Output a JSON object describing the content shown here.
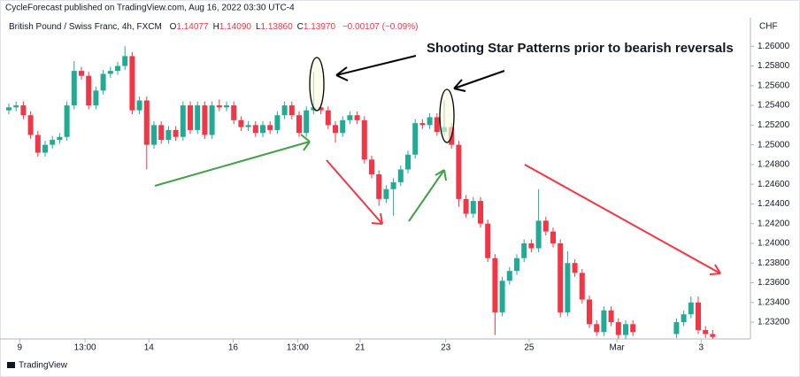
{
  "header": {
    "published": "CycleForecast published on TradingView.com, Aug 16, 2022 03:30 UTC-4",
    "footer": "TradingView"
  },
  "chart_data": {
    "type": "candlestick",
    "symbol": "British Pound / Swiss Franc, 4h, FXCM",
    "ohlc": [
      {
        "label": "O",
        "value": "1.14077"
      },
      {
        "label": "H",
        "value": "1.14090"
      },
      {
        "label": "L",
        "value": "1.13860"
      },
      {
        "label": "C",
        "value": "1.13970"
      }
    ],
    "change": "−0.00107 (−0.09%)",
    "currency": "CHF",
    "annotation": "Shooting Star Patterns prior to bearish reversals",
    "up_color": "#22ab94",
    "down_color": "#f23645",
    "ylim": [
      1.2303,
      1.262
    ],
    "yticks": [
      {
        "value": 1.26,
        "label": "1.26000"
      },
      {
        "value": 1.258,
        "label": "1.25800"
      },
      {
        "value": 1.256,
        "label": "1.25600"
      },
      {
        "value": 1.254,
        "label": "1.25400"
      },
      {
        "value": 1.252,
        "label": "1.25200"
      },
      {
        "value": 1.25,
        "label": "1.25000"
      },
      {
        "value": 1.248,
        "label": "1.24800"
      },
      {
        "value": 1.246,
        "label": "1.24600"
      },
      {
        "value": 1.244,
        "label": "1.24400"
      },
      {
        "value": 1.242,
        "label": "1.24200"
      },
      {
        "value": 1.24,
        "label": "1.24000"
      },
      {
        "value": 1.238,
        "label": "1.23800"
      },
      {
        "value": 1.236,
        "label": "1.23600"
      },
      {
        "value": 1.234,
        "label": "1.23400"
      },
      {
        "value": 1.232,
        "label": "1.23200"
      }
    ],
    "xticks": [
      {
        "value": 1.5,
        "label": "9"
      },
      {
        "value": 10.5,
        "label": "13:00"
      },
      {
        "value": 19.3,
        "label": "14"
      },
      {
        "value": 30.9,
        "label": "16"
      },
      {
        "value": 39.8,
        "label": "13:00"
      },
      {
        "value": 48.4,
        "label": "21"
      },
      {
        "value": 60.2,
        "label": "23"
      },
      {
        "value": 71.7,
        "label": "25"
      },
      {
        "value": 83.8,
        "label": "Mar"
      },
      {
        "value": 95.4,
        "label": "3"
      }
    ],
    "candles": [
      [
        1.2535,
        1.2542,
        1.2531,
        1.2538
      ],
      [
        1.2538,
        1.2544,
        1.2534,
        1.254
      ],
      [
        1.254,
        1.2544,
        1.2526,
        1.253
      ],
      [
        1.253,
        1.2534,
        1.2506,
        1.251
      ],
      [
        1.251,
        1.2514,
        1.2488,
        1.2492
      ],
      [
        1.2492,
        1.2504,
        1.2488,
        1.25
      ],
      [
        1.25,
        1.2509,
        1.2496,
        1.2505
      ],
      [
        1.2505,
        1.2512,
        1.2501,
        1.2508
      ],
      [
        1.2508,
        1.2544,
        1.2504,
        1.254
      ],
      [
        1.254,
        1.2585,
        1.2536,
        1.2575
      ],
      [
        1.2575,
        1.2579,
        1.2566,
        1.257
      ],
      [
        1.257,
        1.2574,
        1.2536,
        1.254
      ],
      [
        1.254,
        1.2559,
        1.2536,
        1.2555
      ],
      [
        1.2555,
        1.2576,
        1.2551,
        1.2572
      ],
      [
        1.2572,
        1.2579,
        1.2568,
        1.2575
      ],
      [
        1.2575,
        1.2584,
        1.2571,
        1.258
      ],
      [
        1.258,
        1.26,
        1.2576,
        1.259
      ],
      [
        1.259,
        1.2594,
        1.2531,
        1.2535
      ],
      [
        1.2535,
        1.2549,
        1.2531,
        1.2545
      ],
      [
        1.2545,
        1.2549,
        1.2475,
        1.25
      ],
      [
        1.25,
        1.2524,
        1.2496,
        1.252
      ],
      [
        1.252,
        1.2524,
        1.2501,
        1.2505
      ],
      [
        1.2505,
        1.2519,
        1.2501,
        1.2515
      ],
      [
        1.2515,
        1.2519,
        1.2504,
        1.2508
      ],
      [
        1.2508,
        1.2544,
        1.2504,
        1.254
      ],
      [
        1.254,
        1.2544,
        1.2511,
        1.2515
      ],
      [
        1.2515,
        1.2544,
        1.2511,
        1.254
      ],
      [
        1.254,
        1.2544,
        1.2506,
        1.251
      ],
      [
        1.251,
        1.2544,
        1.2506,
        1.254
      ],
      [
        1.254,
        1.2546,
        1.2534,
        1.2538
      ],
      [
        1.2538,
        1.2544,
        1.2534,
        1.254
      ],
      [
        1.254,
        1.2544,
        1.2521,
        1.2525
      ],
      [
        1.2525,
        1.2529,
        1.2514,
        1.2518
      ],
      [
        1.2518,
        1.2524,
        1.2514,
        1.252
      ],
      [
        1.252,
        1.2524,
        1.2508,
        1.2512
      ],
      [
        1.2512,
        1.2524,
        1.2508,
        1.252
      ],
      [
        1.252,
        1.2524,
        1.2511,
        1.2515
      ],
      [
        1.2515,
        1.2534,
        1.2511,
        1.253
      ],
      [
        1.253,
        1.2544,
        1.2526,
        1.254
      ],
      [
        1.254,
        1.2544,
        1.2526,
        1.253
      ],
      [
        1.253,
        1.2534,
        1.2508,
        1.2512
      ],
      [
        1.2512,
        1.2539,
        1.2508,
        1.2535
      ],
      [
        1.2535,
        1.2574,
        1.2531,
        1.2538
      ],
      [
        1.2538,
        1.2542,
        1.2531,
        1.2535
      ],
      [
        1.2535,
        1.2539,
        1.2516,
        1.252
      ],
      [
        1.252,
        1.2524,
        1.2502,
        1.2512
      ],
      [
        1.2512,
        1.2529,
        1.2508,
        1.2525
      ],
      [
        1.2525,
        1.2534,
        1.2521,
        1.253
      ],
      [
        1.253,
        1.2534,
        1.2521,
        1.2525
      ],
      [
        1.2525,
        1.2529,
        1.2481,
        1.2485
      ],
      [
        1.2485,
        1.2489,
        1.2466,
        1.247
      ],
      [
        1.247,
        1.2474,
        1.2438,
        1.2445
      ],
      [
        1.2445,
        1.2459,
        1.2441,
        1.2455
      ],
      [
        1.2455,
        1.2466,
        1.2428,
        1.2462
      ],
      [
        1.2462,
        1.2479,
        1.2458,
        1.2475
      ],
      [
        1.2475,
        1.2494,
        1.2471,
        1.249
      ],
      [
        1.249,
        1.2526,
        1.2486,
        1.2522
      ],
      [
        1.2522,
        1.2526,
        1.2516,
        1.252
      ],
      [
        1.252,
        1.2532,
        1.2516,
        1.2528
      ],
      [
        1.2528,
        1.2532,
        1.2509,
        1.2513
      ],
      [
        1.2513,
        1.2545,
        1.2509,
        1.2518
      ],
      [
        1.2518,
        1.2522,
        1.2496,
        1.25
      ],
      [
        1.25,
        1.2504,
        1.2437,
        1.2445
      ],
      [
        1.2445,
        1.2449,
        1.2426,
        1.243
      ],
      [
        1.243,
        1.2447,
        1.2426,
        1.2443
      ],
      [
        1.2443,
        1.2447,
        1.2416,
        1.242
      ],
      [
        1.242,
        1.2424,
        1.2381,
        1.2385
      ],
      [
        1.2385,
        1.2389,
        1.2307,
        1.233
      ],
      [
        1.233,
        1.2366,
        1.2326,
        1.2362
      ],
      [
        1.2362,
        1.2376,
        1.2358,
        1.2372
      ],
      [
        1.2372,
        1.2389,
        1.2368,
        1.2385
      ],
      [
        1.2385,
        1.2404,
        1.2381,
        1.24
      ],
      [
        1.24,
        1.2404,
        1.2391,
        1.2395
      ],
      [
        1.2395,
        1.2455,
        1.2391,
        1.2423
      ],
      [
        1.2423,
        1.2427,
        1.2408,
        1.2412
      ],
      [
        1.2412,
        1.2416,
        1.2396,
        1.24
      ],
      [
        1.24,
        1.2404,
        1.2325,
        1.233
      ],
      [
        1.233,
        1.2392,
        1.2326,
        1.238
      ],
      [
        1.238,
        1.2384,
        1.2366,
        1.237
      ],
      [
        1.237,
        1.2374,
        1.2339,
        1.2343
      ],
      [
        1.2343,
        1.2347,
        1.2314,
        1.2318
      ],
      [
        1.2318,
        1.2322,
        1.2306,
        1.231
      ],
      [
        1.231,
        1.2336,
        1.2306,
        1.2332
      ],
      [
        1.2332,
        1.2336,
        1.2316,
        1.232
      ],
      [
        1.232,
        1.2324,
        1.2303,
        1.2307
      ],
      [
        1.2307,
        1.2322,
        1.2303,
        1.2318
      ],
      [
        1.2318,
        1.2322,
        1.2306,
        1.231
      ],
      null,
      null,
      null,
      null,
      null,
      [
        1.2308,
        1.2324,
        1.2304,
        1.232
      ],
      [
        1.232,
        1.2332,
        1.2316,
        1.2328
      ],
      [
        1.2328,
        1.2346,
        1.2324,
        1.234
      ],
      [
        1.234,
        1.2346,
        1.2308,
        1.2312
      ],
      [
        1.2312,
        1.2316,
        1.2304,
        1.2308
      ],
      [
        1.2308,
        1.2312,
        1.2303,
        1.2305
      ]
    ]
  }
}
